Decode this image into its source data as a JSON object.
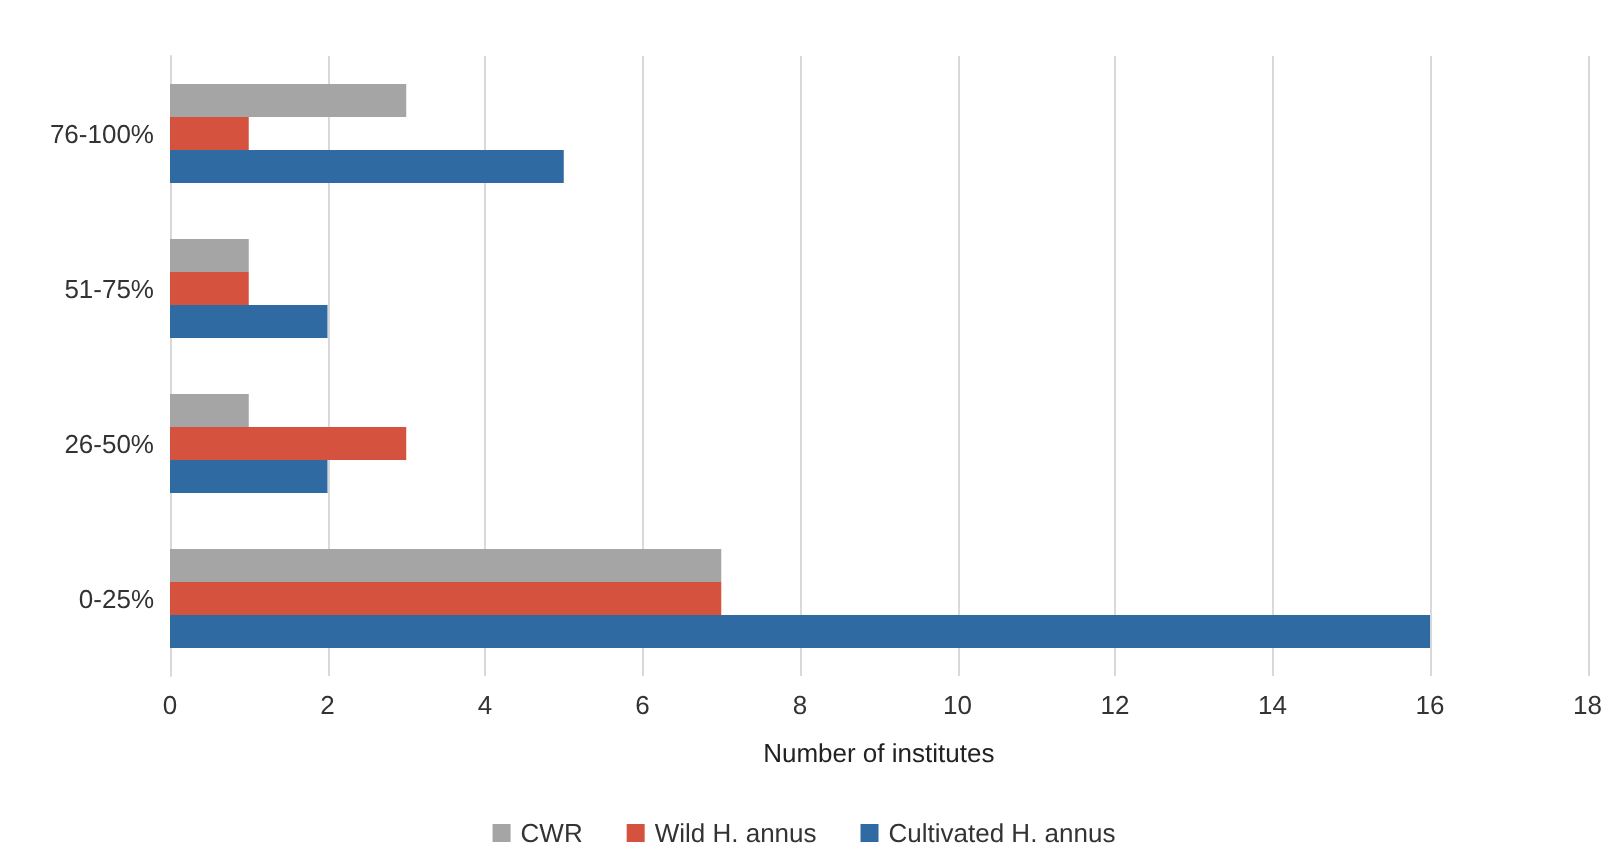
{
  "chart_data": {
    "type": "bar",
    "orientation": "horizontal",
    "xlabel": "Number of institutes",
    "categories": [
      "76-100%",
      "51-75%",
      "26-50%",
      "0-25%"
    ],
    "series": [
      {
        "name": "CWR",
        "color": "#a5a5a5",
        "values": [
          3,
          1,
          1,
          7
        ]
      },
      {
        "name": "Wild H. annus",
        "color": "#d5533e",
        "values": [
          1,
          1,
          3,
          7
        ]
      },
      {
        "name": "Cultivated H. annus",
        "color": "#2f6aa3",
        "values": [
          5,
          2,
          2,
          16
        ]
      }
    ],
    "xlim": [
      0,
      18
    ],
    "xticks": [
      0,
      2,
      4,
      6,
      8,
      10,
      12,
      14,
      16,
      18
    ],
    "grid": "x",
    "legend": "bottom"
  }
}
